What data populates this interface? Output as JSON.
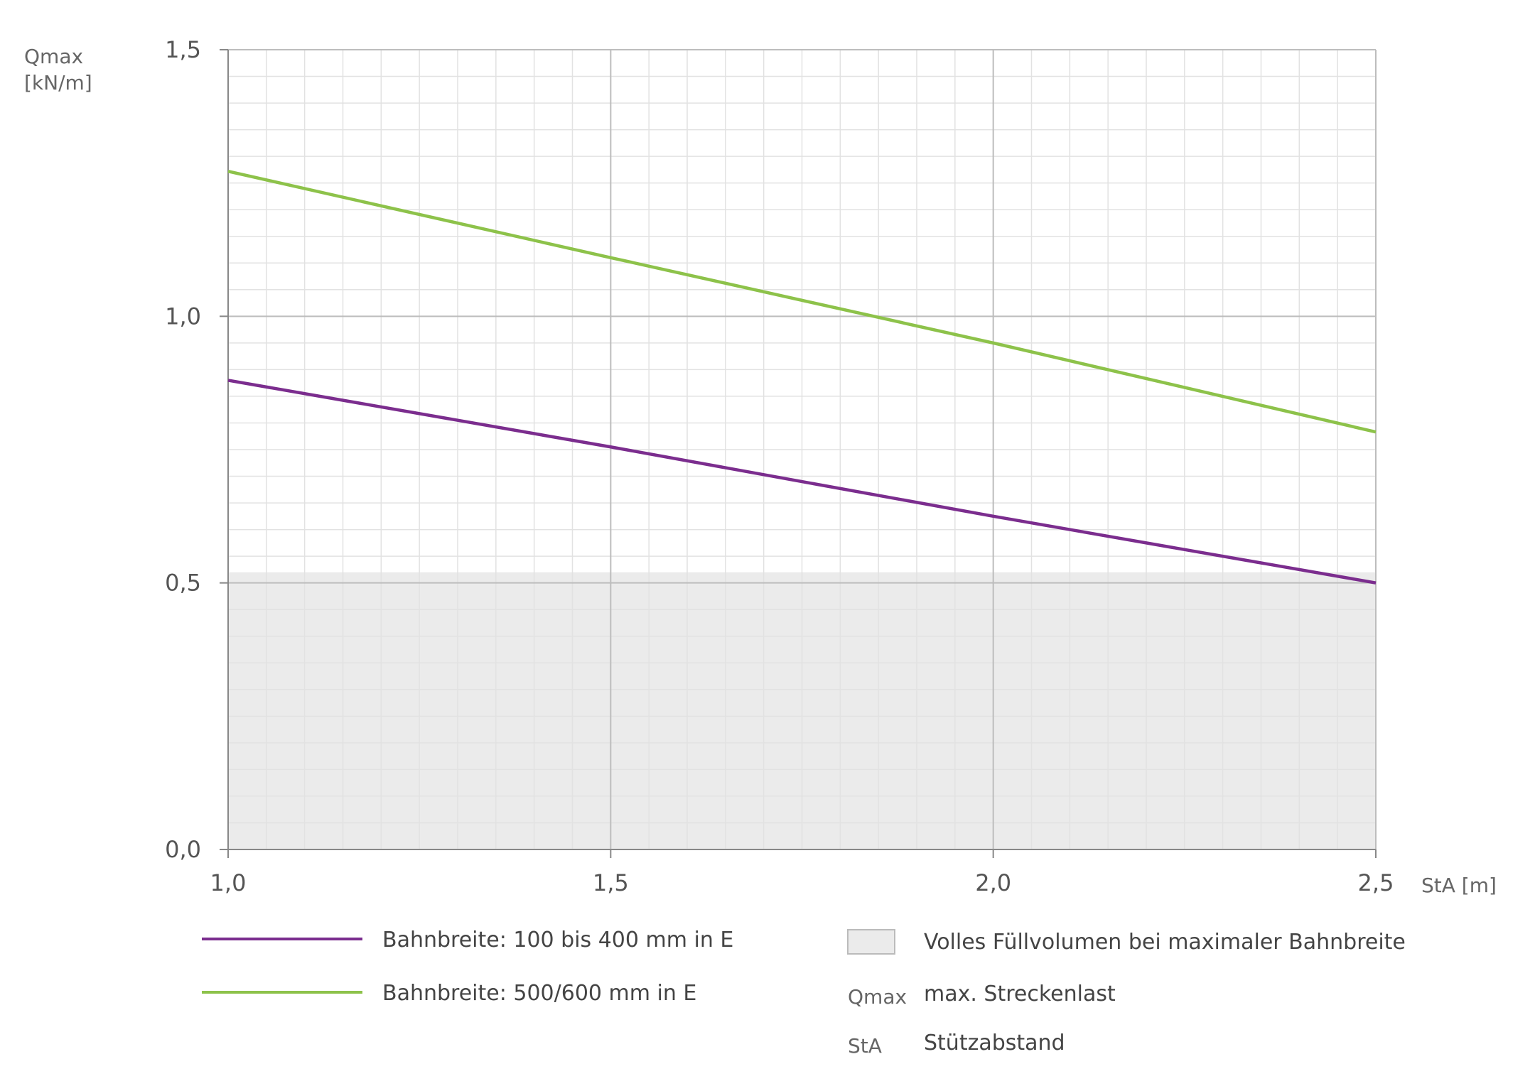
{
  "chart_data": {
    "type": "line",
    "ylabel_line1": "Qmax",
    "ylabel_line2": "[kN/m]",
    "xlabel": "StA [m]",
    "xlim": [
      1.0,
      2.5
    ],
    "ylim": [
      0.0,
      1.5
    ],
    "x_ticks": [
      "1,0",
      "1,5",
      "2,0",
      "2,5"
    ],
    "x_tick_values": [
      1.0,
      1.5,
      2.0,
      2.5
    ],
    "y_ticks": [
      "0,0",
      "0,5",
      "1,0",
      "1,5"
    ],
    "y_tick_values": [
      0.0,
      0.5,
      1.0,
      1.5
    ],
    "grid": true,
    "series": [
      {
        "name": "Bahnbreite: 100 bis 400 mm in E",
        "color": "#7b2d8e",
        "x": [
          1.0,
          1.5,
          2.0,
          2.5
        ],
        "y": [
          0.88,
          0.755,
          0.625,
          0.5
        ]
      },
      {
        "name": "Bahnbreite: 500/600 mm in E",
        "color": "#8dc24a",
        "x": [
          1.0,
          1.5,
          2.0,
          2.5
        ],
        "y": [
          1.272,
          1.11,
          0.95,
          0.783
        ]
      }
    ],
    "shaded_region": {
      "label": "Volles Füllvolumen bei maximaler Bahnbreite",
      "y_from": 0.0,
      "y_to": 0.52,
      "color": "#ebebeb"
    },
    "abbreviations": [
      {
        "abbr": "Qmax",
        "text": "max. Streckenlast"
      },
      {
        "abbr": "StA",
        "text": "Stützabstand"
      }
    ]
  }
}
